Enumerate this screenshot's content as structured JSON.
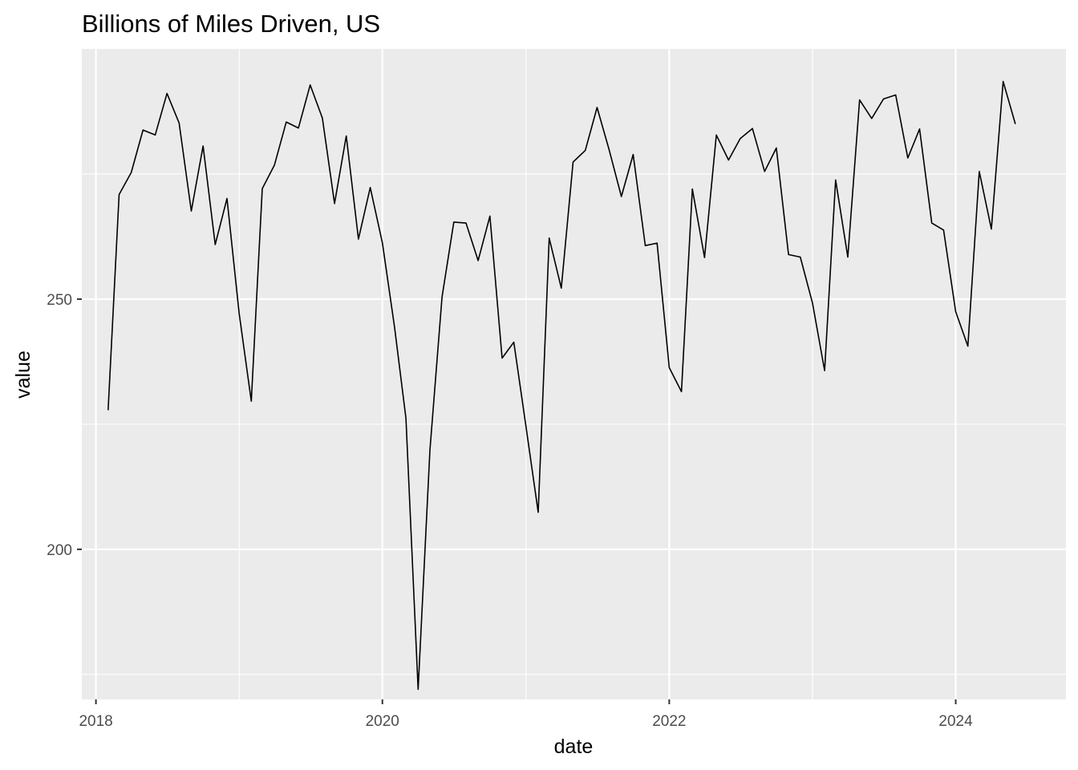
{
  "chart_data": {
    "type": "line",
    "title": "Billions of Miles Driven, US",
    "xlabel": "date",
    "ylabel": "value",
    "x_tick_labels": [
      "2018",
      "2020",
      "2022",
      "2024"
    ],
    "y_tick_labels": [
      "200",
      "250"
    ],
    "xlim": [
      "2017-11-26",
      "2024-10-08"
    ],
    "ylim": [
      170,
      300
    ],
    "grid": true,
    "legend": "none",
    "colors": {
      "panel": "#ebebeb",
      "grid": "#ffffff",
      "line": "#000000"
    },
    "series": [
      {
        "x": [
          "2018-02-01",
          "2018-03-01",
          "2018-04-01",
          "2018-05-01",
          "2018-06-01",
          "2018-07-01",
          "2018-08-01",
          "2018-09-01",
          "2018-10-01",
          "2018-11-01",
          "2018-12-01",
          "2019-01-01",
          "2019-02-01",
          "2019-03-01",
          "2019-04-01",
          "2019-05-01",
          "2019-06-01",
          "2019-07-01",
          "2019-08-01",
          "2019-09-01",
          "2019-10-01",
          "2019-11-01",
          "2019-12-01",
          "2020-01-01",
          "2020-02-01",
          "2020-03-01",
          "2020-04-01",
          "2020-05-01",
          "2020-06-01",
          "2020-07-01",
          "2020-08-01",
          "2020-09-01",
          "2020-10-01",
          "2020-11-01",
          "2020-12-01",
          "2021-01-01",
          "2021-02-01",
          "2021-03-01",
          "2021-04-01",
          "2021-05-01",
          "2021-06-01",
          "2021-07-01",
          "2021-08-01",
          "2021-09-01",
          "2021-10-01",
          "2021-11-01",
          "2021-12-01",
          "2022-01-01",
          "2022-02-01",
          "2022-03-01",
          "2022-04-01",
          "2022-05-01",
          "2022-06-01",
          "2022-07-01",
          "2022-08-01",
          "2022-09-01",
          "2022-10-01",
          "2022-11-01",
          "2022-12-01",
          "2023-01-01",
          "2023-02-01",
          "2023-03-01",
          "2023-04-01",
          "2023-05-01",
          "2023-06-01",
          "2023-07-01",
          "2023-08-01",
          "2023-09-01",
          "2023-10-01",
          "2023-11-01",
          "2023-12-01",
          "2024-01-01",
          "2024-02-01",
          "2024-03-01",
          "2024-04-01",
          "2024-05-01",
          "2024-06-01"
        ],
        "y": [
          227.8,
          270.9,
          275.3,
          283.8,
          282.8,
          291.1,
          285.2,
          267.6,
          280.6,
          260.9,
          270.1,
          247.1,
          229.6,
          272.1,
          276.8,
          285.4,
          284.2,
          292.8,
          286.2,
          269.1,
          282.6,
          262.0,
          272.3,
          261.2,
          244.4,
          226.2,
          172.0,
          219.8,
          250.4,
          265.4,
          265.2,
          257.7,
          266.6,
          238.2,
          241.4,
          224.5,
          207.4,
          262.2,
          252.2,
          277.4,
          279.7,
          288.3,
          279.8,
          270.5,
          278.9,
          260.7,
          261.2,
          236.3,
          231.5,
          272.0,
          258.3,
          282.8,
          277.8,
          282.1,
          284.1,
          275.5,
          280.2,
          258.9,
          258.4,
          249.2,
          235.7,
          273.8,
          258.4,
          289.8,
          286.1,
          290.0,
          290.8,
          278.2,
          284.0,
          265.2,
          263.8,
          247.5,
          240.6,
          275.5,
          264.0,
          293.5,
          285.0
        ]
      }
    ]
  }
}
